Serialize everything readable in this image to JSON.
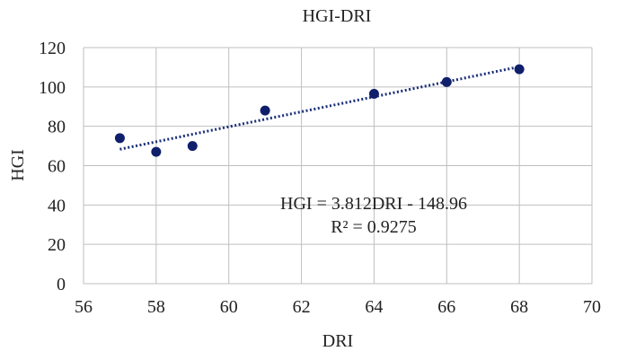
{
  "chart_data": {
    "type": "scatter",
    "title": "HGI-DRI",
    "xlabel": "DRI",
    "ylabel": "HGI",
    "xlim": [
      56,
      70
    ],
    "ylim": [
      0,
      120
    ],
    "x_ticks": [
      56,
      58,
      60,
      62,
      64,
      66,
      68,
      70
    ],
    "y_ticks": [
      0,
      20,
      40,
      60,
      80,
      100,
      120
    ],
    "grid": true,
    "series": [
      {
        "x": [
          57,
          58,
          59,
          61,
          64,
          66,
          68
        ],
        "y": [
          74,
          67,
          70,
          88,
          96.5,
          102.5,
          109
        ]
      }
    ],
    "trendline": {
      "type": "linear",
      "slope": 3.812,
      "intercept": -148.96,
      "x_range": [
        57,
        68
      ],
      "style": "dotted"
    },
    "annotations": [
      "HGI = 3.812DRI - 148.96",
      "R² = 0.9275"
    ],
    "colors": {
      "marker": "#0f1f6b",
      "trendline": "#1a2f7a",
      "grid": "#bfbfbf",
      "text": "#222222"
    }
  }
}
